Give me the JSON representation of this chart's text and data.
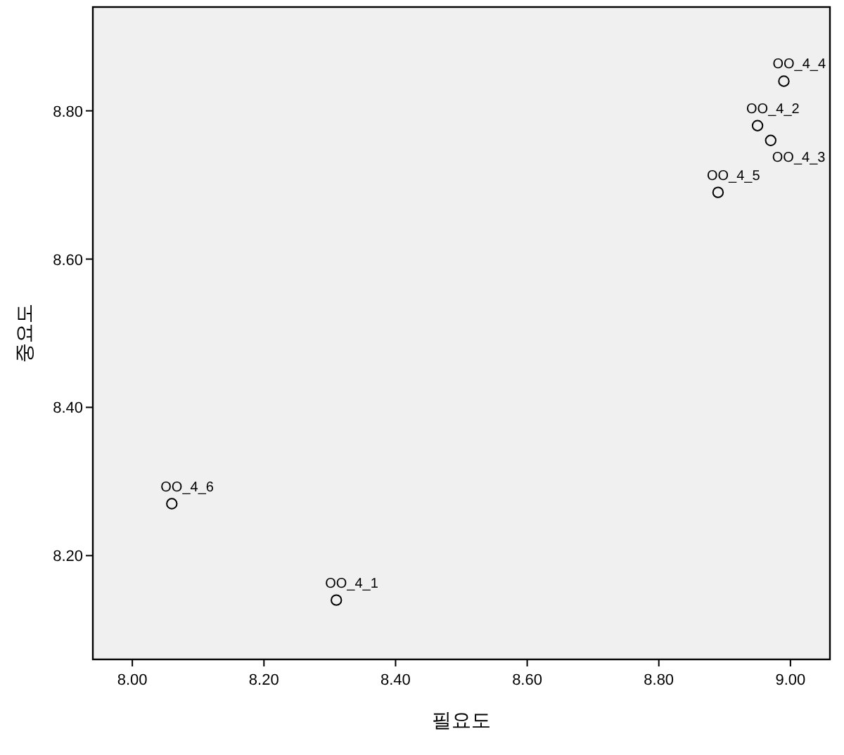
{
  "chart_data": {
    "type": "scatter",
    "xlabel": "필요도",
    "ylabel": "중요도",
    "x": [
      8.31,
      8.95,
      8.97,
      8.99,
      8.89,
      8.06
    ],
    "values": [
      8.14,
      8.78,
      8.76,
      8.84,
      8.69,
      8.27
    ],
    "color": "#000000",
    "marker": "circle",
    "grid": false,
    "xlim": [
      7.94,
      9.06
    ],
    "xticks": [
      {
        "value": 8,
        "label": "8.00"
      },
      {
        "value": 8.2,
        "label": "8.20"
      },
      {
        "value": 8.4,
        "label": "8.40"
      },
      {
        "value": 8.6,
        "label": "8.60"
      },
      {
        "value": 8.8,
        "label": "8.80"
      },
      {
        "value": 9,
        "label": "9.00"
      }
    ],
    "ylim": [
      8.06,
      8.94
    ],
    "yticks": [
      {
        "value": 8.2,
        "label": "8.20"
      },
      {
        "value": 8.4,
        "label": "8.40"
      },
      {
        "value": 8.6,
        "label": "8.60"
      },
      {
        "value": 8.8,
        "label": "8.80"
      }
    ],
    "annotations": [
      {
        "text": "OO_4_1",
        "x": 8.31,
        "y": 8.14
      },
      {
        "text": "OO_4_2",
        "x": 8.95,
        "y": 8.78
      },
      {
        "text": "OO_4_3",
        "x": 8.97,
        "y": 8.76
      },
      {
        "text": "OO_4_4",
        "x": 8.99,
        "y": 8.84
      },
      {
        "text": "OO_4_5",
        "x": 8.89,
        "y": 8.69
      },
      {
        "text": "OO_4_6",
        "x": 8.06,
        "y": 8.27
      }
    ]
  }
}
